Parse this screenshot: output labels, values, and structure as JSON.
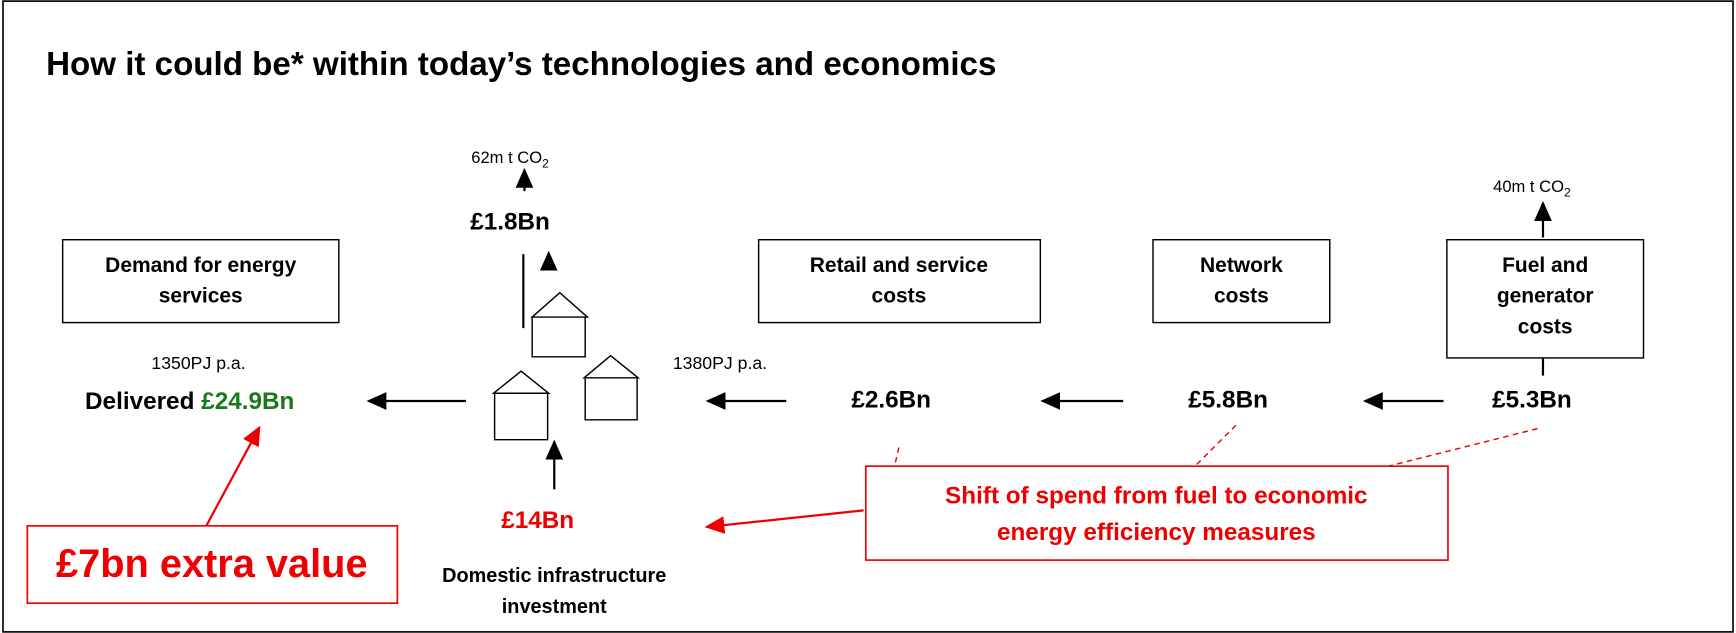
{
  "title": "How it could be* within today’s technologies and economics",
  "boxes": [
    {
      "lines": [
        "Demand for energy",
        "services"
      ]
    },
    {
      "lines": [
        "Retail and service",
        "costs"
      ]
    },
    {
      "lines": [
        "Network",
        "costs"
      ]
    },
    {
      "lines": [
        "Fuel and",
        "generator",
        "costs"
      ]
    }
  ],
  "delivered": {
    "pj": "1350PJ p.a.",
    "label": "Delivered",
    "value": "£24.9Bn"
  },
  "supply_pj": "1380PJ p.a.",
  "costs": [
    "£2.6Bn",
    "£5.8Bn",
    "£5.3Bn"
  ],
  "house_cost": "£1.8Bn",
  "emissions": [
    {
      "text": "62m t CO",
      "sub": "2"
    },
    {
      "text": "40m t CO",
      "sub": "2"
    }
  ],
  "investment": {
    "value": "£14Bn",
    "lines": [
      "Domestic infrastructure",
      "investment"
    ]
  },
  "extra_value": "£7bn extra value",
  "shift": {
    "lines": [
      "Shift of spend from fuel to economic",
      "energy efficiency measures"
    ]
  }
}
